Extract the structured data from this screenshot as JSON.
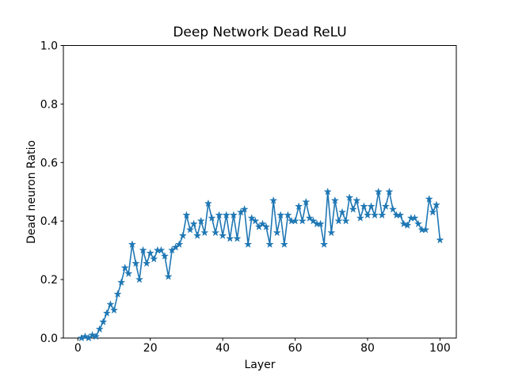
{
  "chart_data": {
    "type": "line",
    "title": "Deep Network Dead ReLU",
    "xlabel": "Layer",
    "ylabel": "Dead neuron Ratio",
    "legend": "none",
    "grid": false,
    "marker": "star",
    "line_color": "#1f77b4",
    "background_color": "#ffffff",
    "spine_color": "#000000",
    "xlim": [
      -4,
      104.5
    ],
    "ylim": [
      0,
      1
    ],
    "xticks": [
      0,
      20,
      40,
      60,
      80,
      100
    ],
    "xtick_labels": [
      "0",
      "20",
      "40",
      "60",
      "80",
      "100"
    ],
    "yticks": [
      0.0,
      0.2,
      0.4,
      0.6,
      0.8,
      1.0
    ],
    "ytick_labels": [
      "0.0",
      "0.2",
      "0.4",
      "0.6",
      "0.8",
      "1.0"
    ],
    "x": [
      1,
      2,
      3,
      4,
      5,
      6,
      7,
      8,
      9,
      10,
      11,
      12,
      13,
      14,
      15,
      16,
      17,
      18,
      19,
      20,
      21,
      22,
      23,
      24,
      25,
      26,
      27,
      28,
      29,
      30,
      31,
      32,
      33,
      34,
      35,
      36,
      37,
      38,
      39,
      40,
      41,
      42,
      43,
      44,
      45,
      46,
      47,
      48,
      49,
      50,
      51,
      52,
      53,
      54,
      55,
      56,
      57,
      58,
      59,
      60,
      61,
      62,
      63,
      64,
      65,
      66,
      67,
      68,
      69,
      70,
      71,
      72,
      73,
      74,
      75,
      76,
      77,
      78,
      79,
      80,
      81,
      82,
      83,
      84,
      85,
      86,
      87,
      88,
      89,
      90,
      91,
      92,
      93,
      94,
      95,
      96,
      97,
      98,
      99,
      100
    ],
    "series": [
      {
        "name": "Dead neuron Ratio",
        "values": [
          0.0,
          0.005,
          0.0,
          0.01,
          0.005,
          0.03,
          0.055,
          0.085,
          0.115,
          0.095,
          0.15,
          0.19,
          0.24,
          0.22,
          0.32,
          0.255,
          0.2,
          0.3,
          0.255,
          0.29,
          0.27,
          0.3,
          0.3,
          0.28,
          0.21,
          0.3,
          0.31,
          0.32,
          0.35,
          0.42,
          0.37,
          0.39,
          0.35,
          0.4,
          0.36,
          0.46,
          0.41,
          0.36,
          0.42,
          0.35,
          0.42,
          0.34,
          0.42,
          0.34,
          0.43,
          0.44,
          0.32,
          0.41,
          0.4,
          0.38,
          0.39,
          0.38,
          0.32,
          0.47,
          0.36,
          0.42,
          0.32,
          0.42,
          0.4,
          0.4,
          0.45,
          0.4,
          0.465,
          0.41,
          0.4,
          0.39,
          0.39,
          0.32,
          0.5,
          0.36,
          0.47,
          0.4,
          0.43,
          0.4,
          0.48,
          0.44,
          0.47,
          0.41,
          0.45,
          0.42,
          0.45,
          0.42,
          0.5,
          0.42,
          0.45,
          0.5,
          0.44,
          0.42,
          0.42,
          0.39,
          0.385,
          0.41,
          0.41,
          0.39,
          0.37,
          0.37,
          0.475,
          0.43,
          0.455,
          0.335
        ]
      }
    ]
  }
}
